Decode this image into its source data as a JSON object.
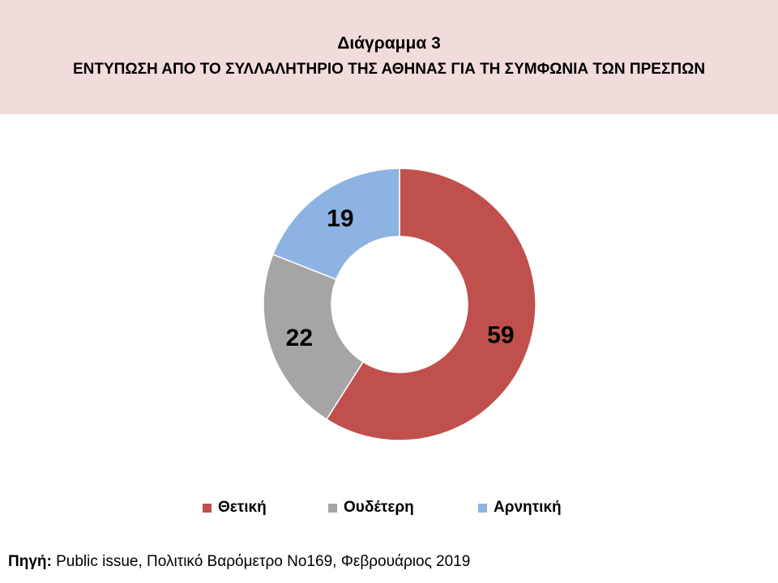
{
  "header": {
    "title": "Διάγραμμα 3",
    "subtitle": "ΕΝΤΥΠΩΣΗ ΑΠΟ ΤΟ ΣΥΛΛΑΛΗΤΗΡΙΟ ΤΗΣ ΑΘΗΝΑΣ ΓΙΑ ΤΗ ΣΥΜΦΩΝΙΑ ΤΩΝ ΠΡΕΣΠΩΝ"
  },
  "chart_data": {
    "type": "pie",
    "variant": "donut",
    "title": "Διάγραμμα 3",
    "subtitle": "ΕΝΤΥΠΩΣΗ ΑΠΟ ΤΟ ΣΥΛΛΑΛΗΤΗΡΙΟ ΤΗΣ ΑΘΗΝΑΣ ΓΙΑ ΤΗ ΣΥΜΦΩΝΙΑ ΤΩΝ ΠΡΕΣΠΩΝ",
    "categories": [
      "Θετική",
      "Ουδέτερη",
      "Αρνητική"
    ],
    "values": [
      59,
      22,
      19
    ],
    "labels": [
      "59",
      "22",
      "19"
    ],
    "colors": [
      "#c0504d",
      "#a5a5a5",
      "#8db3e2"
    ],
    "legend_position": "bottom",
    "start_angle": "12 o'clock, clockwise"
  },
  "source": {
    "label": "Πηγή:",
    "text": " Public issue, Πολιτικό Βαρόμετρο Νο169, Φεβρουάριος 2019"
  }
}
